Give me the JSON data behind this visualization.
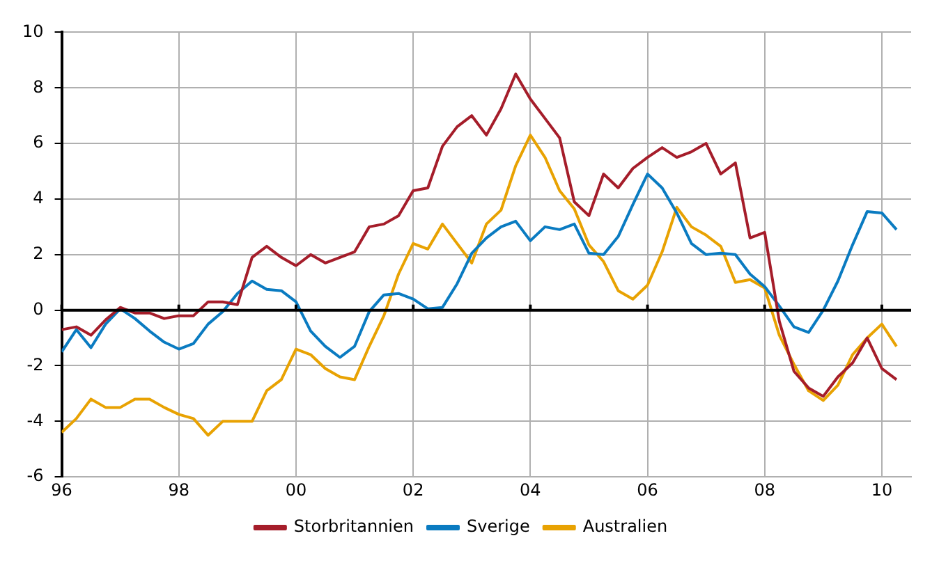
{
  "chart_data": {
    "type": "line",
    "x": [
      1996,
      1996.25,
      1996.5,
      1996.75,
      1997,
      1997.25,
      1997.5,
      1997.75,
      1998,
      1998.25,
      1998.5,
      1998.75,
      1999,
      1999.25,
      1999.5,
      1999.75,
      2000,
      2000.25,
      2000.5,
      2000.75,
      2001,
      2001.25,
      2001.5,
      2001.75,
      2002,
      2002.25,
      2002.5,
      2002.75,
      2003,
      2003.25,
      2003.5,
      2003.75,
      2004,
      2004.25,
      2004.5,
      2004.75,
      2005,
      2005.25,
      2005.5,
      2005.75,
      2006,
      2006.25,
      2006.5,
      2006.75,
      2007,
      2007.25,
      2007.5,
      2007.75,
      2008,
      2008.25,
      2008.5,
      2008.75,
      2009,
      2009.25,
      2009.5,
      2009.75,
      2010,
      2010.25
    ],
    "series": [
      {
        "name": "Storbritannien",
        "color": "#a51d2a",
        "values": [
          -0.7,
          -0.6,
          -0.9,
          -0.35,
          0.1,
          -0.1,
          -0.1,
          -0.3,
          -0.2,
          -0.2,
          0.3,
          0.3,
          0.2,
          1.9,
          2.3,
          1.9,
          1.6,
          2.0,
          1.7,
          1.9,
          2.1,
          3.0,
          3.1,
          3.4,
          4.3,
          4.4,
          5.9,
          6.6,
          7.0,
          6.3,
          7.25,
          8.5,
          7.6,
          6.9,
          6.2,
          3.9,
          3.4,
          4.9,
          4.4,
          5.1,
          5.5,
          5.85,
          5.5,
          5.7,
          6.0,
          4.9,
          5.3,
          2.6,
          2.8,
          -0.4,
          -2.2,
          -2.8,
          -3.1,
          -2.4,
          -1.9,
          -1.0,
          -2.1,
          -2.5
        ]
      },
      {
        "name": "Sverige",
        "color": "#0a7bc1",
        "values": [
          -1.5,
          -0.7,
          -1.35,
          -0.5,
          0.05,
          -0.3,
          -0.75,
          -1.15,
          -1.4,
          -1.2,
          -0.5,
          -0.05,
          0.6,
          1.05,
          0.75,
          0.7,
          0.3,
          -0.75,
          -1.3,
          -1.7,
          -1.3,
          -0.05,
          0.55,
          0.6,
          0.4,
          0.05,
          0.1,
          0.95,
          2.05,
          2.6,
          3.0,
          3.2,
          2.5,
          3.0,
          2.9,
          3.1,
          2.05,
          2.0,
          2.65,
          3.8,
          4.9,
          4.4,
          3.5,
          2.4,
          2.0,
          2.05,
          2.0,
          1.3,
          0.85,
          0.15,
          -0.6,
          -0.8,
          0,
          1.05,
          2.35,
          3.55,
          3.5,
          2.9
        ]
      },
      {
        "name": "Australien",
        "color": "#e8a202",
        "values": [
          -4.4,
          -3.9,
          -3.2,
          -3.5,
          -3.5,
          -3.2,
          -3.2,
          -3.5,
          -3.75,
          -3.9,
          -4.5,
          -4.0,
          -4.0,
          -4.0,
          -2.9,
          -2.5,
          -1.4,
          -1.6,
          -2.1,
          -2.4,
          -2.5,
          -1.3,
          -0.2,
          1.3,
          2.4,
          2.2,
          3.1,
          2.4,
          1.7,
          3.1,
          3.6,
          5.2,
          6.3,
          5.5,
          4.3,
          3.65,
          2.35,
          1.75,
          0.7,
          0.4,
          0.9,
          2.1,
          3.7,
          3.0,
          2.7,
          2.3,
          1.0,
          1.1,
          0.8,
          -0.9,
          -1.95,
          -2.9,
          -3.25,
          -2.7,
          -1.6,
          -1.0,
          -0.5,
          -1.3
        ]
      }
    ],
    "xlim": [
      1996,
      2010.5
    ],
    "xticks": [
      {
        "value": 1996,
        "label": "96"
      },
      {
        "value": 1998,
        "label": "98"
      },
      {
        "value": 2000,
        "label": "00"
      },
      {
        "value": 2002,
        "label": "02"
      },
      {
        "value": 2004,
        "label": "04"
      },
      {
        "value": 2006,
        "label": "06"
      },
      {
        "value": 2008,
        "label": "08"
      },
      {
        "value": 2010,
        "label": "10"
      }
    ],
    "ylim": [
      -6,
      10
    ],
    "yticks": [
      -6,
      -4,
      -2,
      0,
      2,
      4,
      6,
      8,
      10
    ],
    "ref_lines": [
      {
        "axis": "y",
        "value": 0,
        "color": "#000000"
      }
    ],
    "grid": true,
    "legend": "bottom",
    "marker": "none",
    "line_style": "solid"
  }
}
